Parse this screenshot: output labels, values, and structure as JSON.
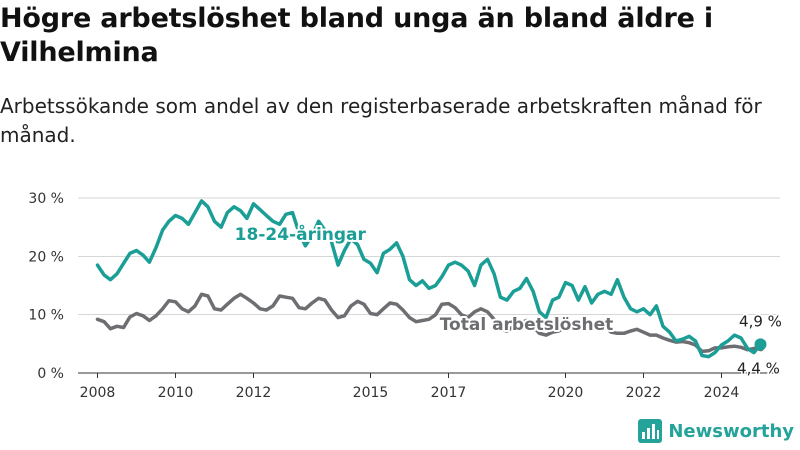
{
  "title": "Högre arbetslöshet bland unga än bland äldre i Vilhelmina",
  "subtitle": "Arbetssökande som andel av den registerbaserade arbetskraften månad för månad.",
  "logo": {
    "text": "Newsworthy",
    "icon": "bar-chart-logo-icon"
  },
  "chart_data": {
    "type": "line",
    "ylim": [
      0,
      30
    ],
    "xlim": [
      2007.5,
      2025.5
    ],
    "y_ticks": [
      {
        "value": 0,
        "label": "0 %"
      },
      {
        "value": 10,
        "label": "10 %"
      },
      {
        "value": 20,
        "label": "20 %"
      },
      {
        "value": 30,
        "label": "30 %"
      }
    ],
    "x_ticks": [
      {
        "value": 2008,
        "label": "2008"
      },
      {
        "value": 2010,
        "label": "2010"
      },
      {
        "value": 2012,
        "label": "2012"
      },
      {
        "value": 2015,
        "label": "2015"
      },
      {
        "value": 2017,
        "label": "2017"
      },
      {
        "value": 2020,
        "label": "2020"
      },
      {
        "value": 2022,
        "label": "2022"
      },
      {
        "value": 2024,
        "label": "2024"
      }
    ],
    "grid": "horizontal",
    "series": [
      {
        "name": "18-24-åringar",
        "color": "#1a9e96",
        "end_label": "4,9 %",
        "x": [
          2008.0,
          2008.17,
          2008.33,
          2008.5,
          2008.67,
          2008.83,
          2009.0,
          2009.17,
          2009.33,
          2009.5,
          2009.67,
          2009.83,
          2010.0,
          2010.17,
          2010.33,
          2010.5,
          2010.67,
          2010.83,
          2011.0,
          2011.17,
          2011.33,
          2011.5,
          2011.67,
          2011.83,
          2012.0,
          2012.17,
          2012.33,
          2012.5,
          2012.67,
          2012.83,
          2013.0,
          2013.17,
          2013.33,
          2013.5,
          2013.67,
          2013.83,
          2014.0,
          2014.17,
          2014.33,
          2014.5,
          2014.67,
          2014.83,
          2015.0,
          2015.17,
          2015.33,
          2015.5,
          2015.67,
          2015.83,
          2016.0,
          2016.17,
          2016.33,
          2016.5,
          2016.67,
          2016.83,
          2017.0,
          2017.17,
          2017.33,
          2017.5,
          2017.67,
          2017.83,
          2018.0,
          2018.17,
          2018.33,
          2018.5,
          2018.67,
          2018.83,
          2019.0,
          2019.17,
          2019.33,
          2019.5,
          2019.67,
          2019.83,
          2020.0,
          2020.17,
          2020.33,
          2020.5,
          2020.67,
          2020.83,
          2021.0,
          2021.17,
          2021.33,
          2021.5,
          2021.67,
          2021.83,
          2022.0,
          2022.17,
          2022.33,
          2022.5,
          2022.67,
          2022.83,
          2023.0,
          2023.17,
          2023.33,
          2023.5,
          2023.67,
          2023.83,
          2024.0,
          2024.17,
          2024.33,
          2024.5,
          2024.67,
          2024.83,
          2025.0
        ],
        "values": [
          18.5,
          16.8,
          16.0,
          17.0,
          18.8,
          20.5,
          21.0,
          20.2,
          19.0,
          21.5,
          24.5,
          26.0,
          27.0,
          26.5,
          25.5,
          27.5,
          29.5,
          28.5,
          26.0,
          25.0,
          27.5,
          28.5,
          27.8,
          26.5,
          29.0,
          28.0,
          27.0,
          26.0,
          25.5,
          27.2,
          27.5,
          24.0,
          21.8,
          23.5,
          26.0,
          24.5,
          22.5,
          18.5,
          21.0,
          23.0,
          22.0,
          19.5,
          18.8,
          17.2,
          20.5,
          21.2,
          22.3,
          20.0,
          16.0,
          15.0,
          15.8,
          14.5,
          15.0,
          16.5,
          18.5,
          19.0,
          18.5,
          17.5,
          15.0,
          18.5,
          19.5,
          17.0,
          13.0,
          12.5,
          14.0,
          14.5,
          16.2,
          14.0,
          10.5,
          9.5,
          12.5,
          13.0,
          15.5,
          15.0,
          12.5,
          14.8,
          12.0,
          13.5,
          14.0,
          13.5,
          16.0,
          13.0,
          11.0,
          10.5,
          11.0,
          10.0,
          11.5,
          8.0,
          7.0,
          5.5,
          5.8,
          6.3,
          5.5,
          3.0,
          2.8,
          3.5,
          4.8,
          5.5,
          6.5,
          6.0,
          4.2,
          3.5,
          4.9
        ]
      },
      {
        "name": "Total arbetslöshet",
        "color": "#6d6e72",
        "end_label": "4,4 %",
        "x": [
          2008.0,
          2008.17,
          2008.33,
          2008.5,
          2008.67,
          2008.83,
          2009.0,
          2009.17,
          2009.33,
          2009.5,
          2009.67,
          2009.83,
          2010.0,
          2010.17,
          2010.33,
          2010.5,
          2010.67,
          2010.83,
          2011.0,
          2011.17,
          2011.33,
          2011.5,
          2011.67,
          2011.83,
          2012.0,
          2012.17,
          2012.33,
          2012.5,
          2012.67,
          2012.83,
          2013.0,
          2013.17,
          2013.33,
          2013.5,
          2013.67,
          2013.83,
          2014.0,
          2014.17,
          2014.33,
          2014.5,
          2014.67,
          2014.83,
          2015.0,
          2015.17,
          2015.33,
          2015.5,
          2015.67,
          2015.83,
          2016.0,
          2016.17,
          2016.33,
          2016.5,
          2016.67,
          2016.83,
          2017.0,
          2017.17,
          2017.33,
          2017.5,
          2017.67,
          2017.83,
          2018.0,
          2018.17,
          2018.33,
          2018.5,
          2018.67,
          2018.83,
          2019.0,
          2019.17,
          2019.33,
          2019.5,
          2019.67,
          2019.83,
          2020.0,
          2020.17,
          2020.33,
          2020.5,
          2020.67,
          2020.83,
          2021.0,
          2021.17,
          2021.33,
          2021.5,
          2021.67,
          2021.83,
          2022.0,
          2022.17,
          2022.33,
          2022.5,
          2022.67,
          2022.83,
          2023.0,
          2023.17,
          2023.33,
          2023.5,
          2023.67,
          2023.83,
          2024.0,
          2024.17,
          2024.33,
          2024.5,
          2024.67,
          2024.83,
          2025.0
        ],
        "values": [
          9.2,
          8.8,
          7.6,
          8.0,
          7.8,
          9.6,
          10.2,
          9.8,
          9.0,
          9.8,
          11.0,
          12.4,
          12.2,
          11.0,
          10.5,
          11.5,
          13.5,
          13.2,
          11.0,
          10.8,
          11.8,
          12.8,
          13.5,
          12.8,
          12.0,
          11.0,
          10.8,
          11.5,
          13.2,
          13.0,
          12.8,
          11.2,
          11.0,
          12.0,
          12.8,
          12.5,
          10.8,
          9.5,
          9.8,
          11.5,
          12.3,
          11.8,
          10.2,
          10.0,
          11.0,
          12.0,
          11.8,
          10.8,
          9.5,
          8.8,
          9.0,
          9.2,
          10.0,
          11.8,
          11.9,
          11.2,
          10.0,
          9.5,
          10.5,
          11.0,
          10.5,
          9.2,
          7.5,
          7.2,
          8.0,
          8.5,
          9.0,
          8.0,
          6.8,
          6.5,
          7.0,
          7.2,
          8.0,
          8.2,
          7.5,
          8.5,
          8.0,
          8.0,
          8.0,
          7.0,
          6.8,
          6.8,
          7.2,
          7.5,
          7.0,
          6.5,
          6.5,
          6.0,
          5.6,
          5.3,
          5.4,
          5.2,
          4.8,
          3.7,
          3.8,
          4.3,
          4.3,
          4.5,
          4.6,
          4.4,
          4.0,
          4.2,
          4.4
        ]
      }
    ]
  }
}
